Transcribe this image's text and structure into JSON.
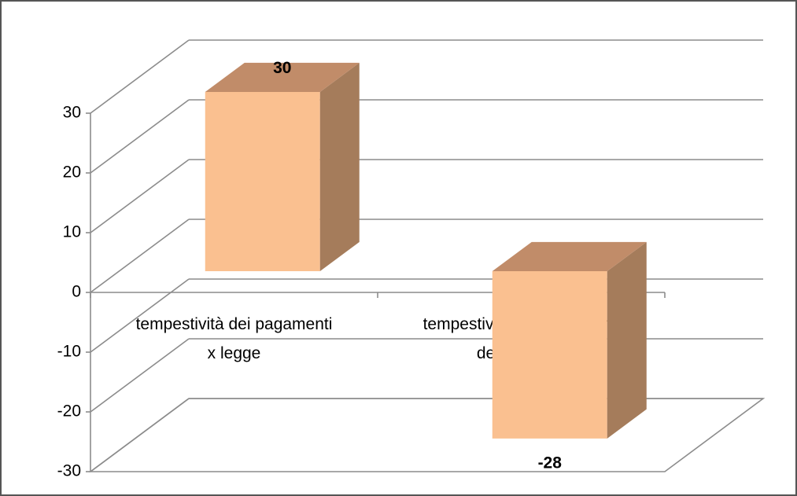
{
  "chart_data": {
    "type": "bar3d",
    "categories": [
      "tempestività dei pagamenti x legge",
      "tempestività dei pagamenti del Comune"
    ],
    "values": [
      30,
      -28
    ],
    "color": "#fac090",
    "ylim": [
      -30,
      30
    ],
    "yticks": [
      -30,
      -20,
      -10,
      0,
      10,
      20,
      30
    ],
    "grid": true
  }
}
